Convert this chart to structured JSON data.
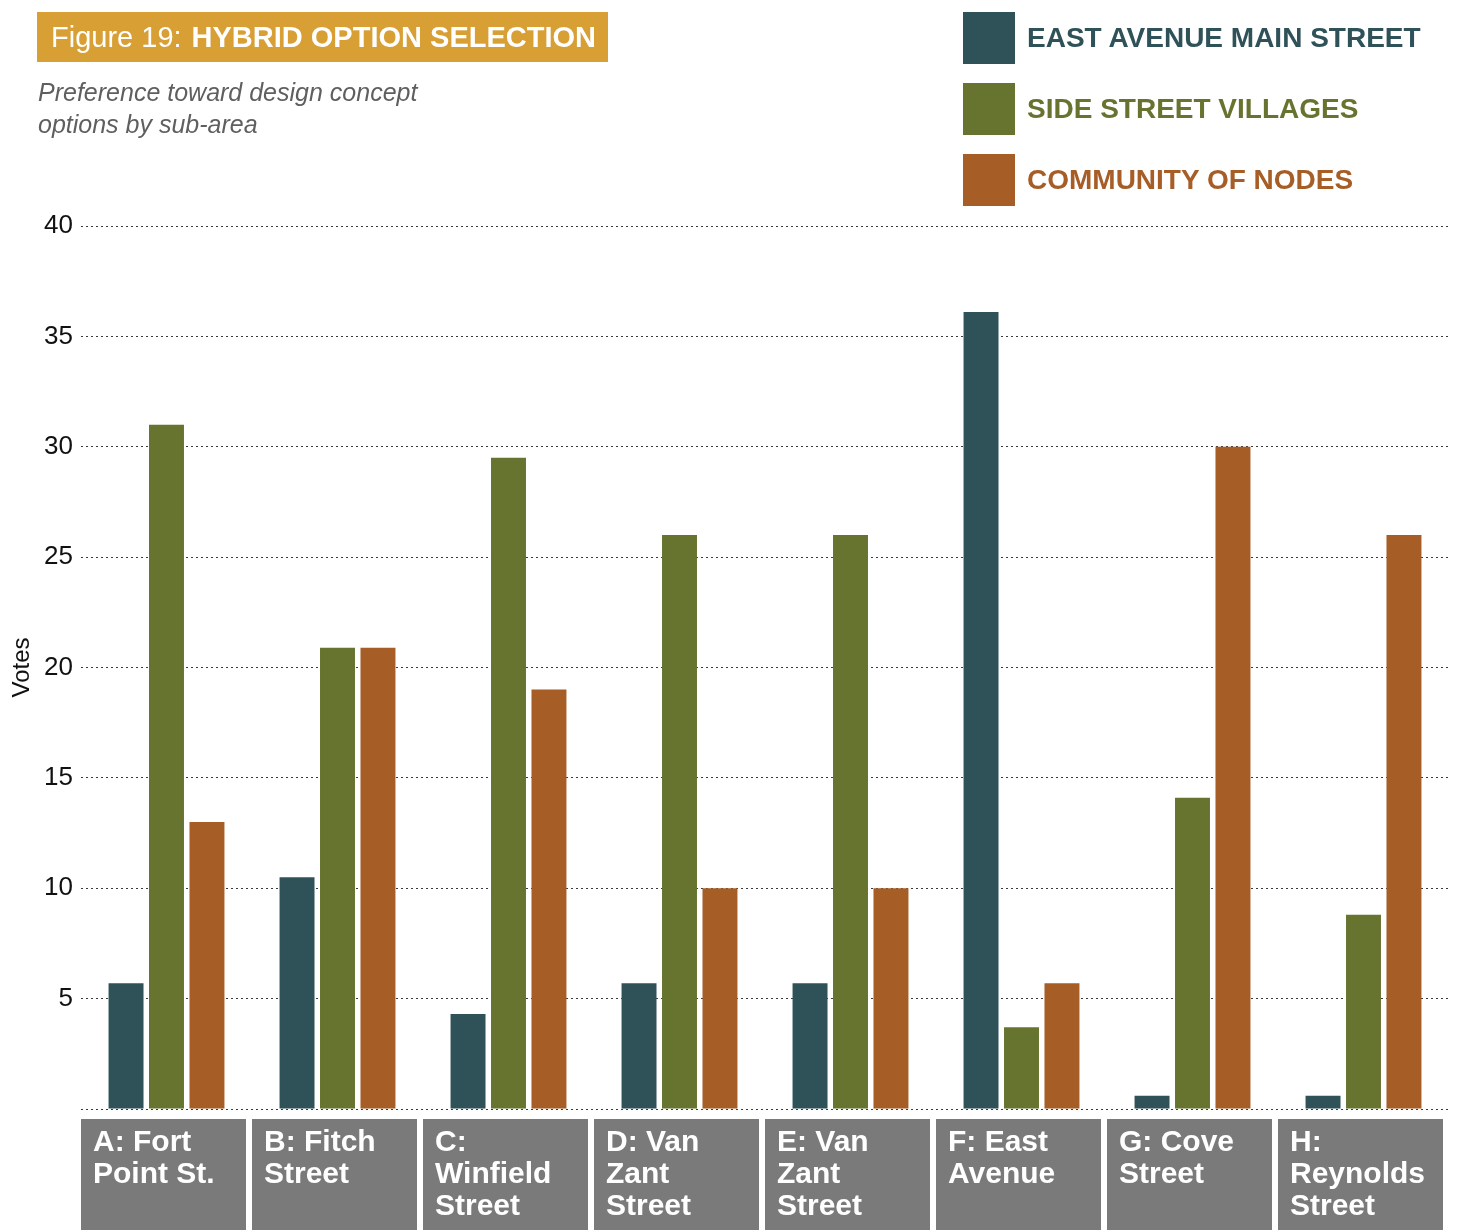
{
  "chart_data": {
    "type": "bar",
    "title": "Figure 19: HYBRID OPTION SELECTION",
    "subtitle": "Preference toward design concept options by sub-area",
    "ylabel": "Votes",
    "categories": [
      "A: Fort Point St.",
      "B: Fitch Street",
      "C: Winfield Street",
      "D: Van Zant Street",
      "E: Van Zant Street",
      "F: East Avenue",
      "G: Cove Street",
      "H: Reynolds Street"
    ],
    "series": [
      {
        "name": "EAST AVENUE MAIN STREET",
        "color": "#2f5259",
        "values": [
          5.7,
          10.5,
          4.3,
          5.7,
          5.7,
          36.1,
          0.6,
          0.6
        ]
      },
      {
        "name": "SIDE STREET VILLAGES",
        "color": "#667430",
        "values": [
          31,
          20.9,
          29.5,
          26,
          26,
          3.7,
          14.1,
          8.8
        ]
      },
      {
        "name": "COMMUNITY OF NODES",
        "color": "#a65d26",
        "values": [
          13,
          20.9,
          19,
          10,
          10,
          5.7,
          30,
          26
        ]
      }
    ],
    "ylim": [
      0,
      40
    ],
    "yticks": [
      {
        "value": 0,
        "label": null
      },
      5,
      10,
      15,
      20,
      25,
      30,
      35,
      40
    ],
    "grid": "y",
    "legend": "top right"
  }
}
